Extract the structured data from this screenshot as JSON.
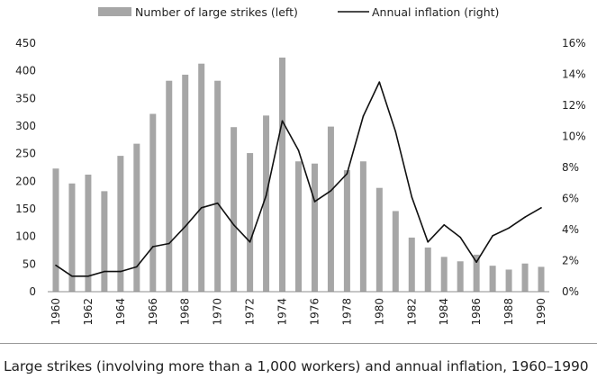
{
  "chart_data": {
    "type": "bar+line",
    "title": "",
    "categories": [
      "1960",
      "1961",
      "1962",
      "1963",
      "1964",
      "1965",
      "1966",
      "1967",
      "1968",
      "1969",
      "1970",
      "1971",
      "1972",
      "1973",
      "1974",
      "1975",
      "1976",
      "1977",
      "1978",
      "1979",
      "1980",
      "1981",
      "1982",
      "1983",
      "1984",
      "1985",
      "1986",
      "1987",
      "1988",
      "1989",
      "1990"
    ],
    "x_tick_labels": [
      "1960",
      "1962",
      "1964",
      "1966",
      "1968",
      "1970",
      "1972",
      "1974",
      "1976",
      "1978",
      "1980",
      "1982",
      "1984",
      "1986",
      "1988",
      "1990"
    ],
    "series": [
      {
        "name": "Number of large strikes (left)",
        "type": "bar",
        "axis": "left",
        "color": "#a6a6a6",
        "values": [
          223,
          196,
          212,
          182,
          246,
          268,
          322,
          382,
          393,
          413,
          382,
          298,
          251,
          319,
          424,
          236,
          232,
          299,
          220,
          236,
          188,
          146,
          98,
          80,
          63,
          55,
          67,
          47,
          40,
          51,
          45
        ]
      },
      {
        "name": "Annual inflation (right)",
        "type": "line",
        "axis": "right",
        "color": "#111111",
        "values": [
          1.7,
          1.0,
          1.0,
          1.3,
          1.3,
          1.6,
          2.9,
          3.1,
          4.2,
          5.4,
          5.7,
          4.3,
          3.2,
          6.2,
          11.0,
          9.1,
          5.8,
          6.5,
          7.6,
          11.3,
          13.5,
          10.3,
          6.1,
          3.2,
          4.3,
          3.5,
          1.9,
          3.6,
          4.1,
          4.8,
          5.4
        ]
      }
    ],
    "left_axis": {
      "ylim": [
        0,
        450
      ],
      "ticks": [
        "0",
        "50",
        "100",
        "150",
        "200",
        "250",
        "300",
        "350",
        "400",
        "450"
      ]
    },
    "right_axis": {
      "ylim": [
        0,
        16
      ],
      "ticks": [
        "0%",
        "2%",
        "4%",
        "6%",
        "8%",
        "10%",
        "12%",
        "14%",
        "16%"
      ]
    },
    "legend": {
      "position": "top",
      "entries": [
        "Number of large strikes (left)",
        "Annual inflation (right)"
      ]
    },
    "grid": false
  },
  "caption": "Large strikes (involving more than a 1,000 workers) and annual inflation, 1960–1990"
}
